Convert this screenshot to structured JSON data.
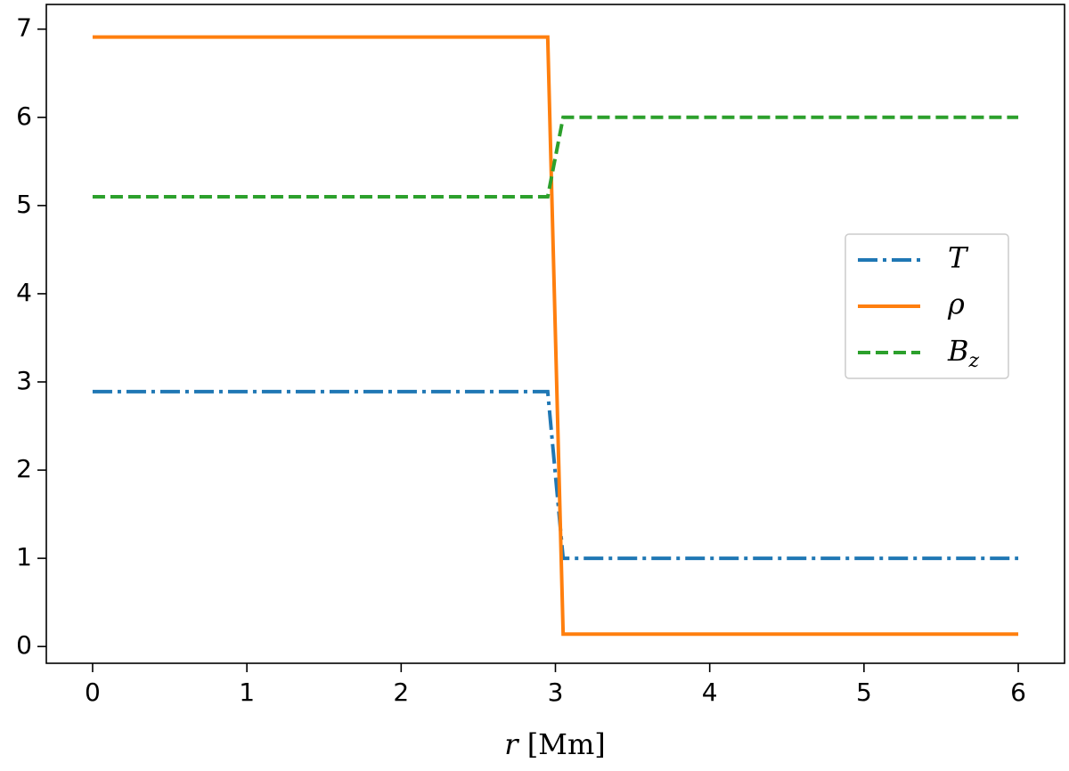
{
  "chart_data": {
    "type": "line",
    "x_label": "r [Mm]",
    "x": [
      0,
      2.95,
      3.05,
      6
    ],
    "series": [
      {
        "name": "T",
        "color": "#1f77b4",
        "dash": "dashdot",
        "values": [
          2.89,
          2.89,
          1.0,
          1.0
        ]
      },
      {
        "name": "ρ",
        "color": "#ff7f0e",
        "dash": "solid",
        "values": [
          6.91,
          6.91,
          0.14,
          0.14
        ]
      },
      {
        "name": "Bz",
        "color": "#2ca02c",
        "dash": "dashed",
        "values": [
          5.1,
          5.1,
          6.0,
          6.0
        ]
      }
    ],
    "xlim": [
      -0.3,
      6.3
    ],
    "xticks": [
      0,
      1,
      2,
      3,
      4,
      5,
      6
    ],
    "ylim": [
      -0.19,
      7.28
    ],
    "yticks": [
      0,
      1,
      2,
      3,
      4,
      5,
      6,
      7
    ],
    "legend": "center right",
    "grid": false
  }
}
